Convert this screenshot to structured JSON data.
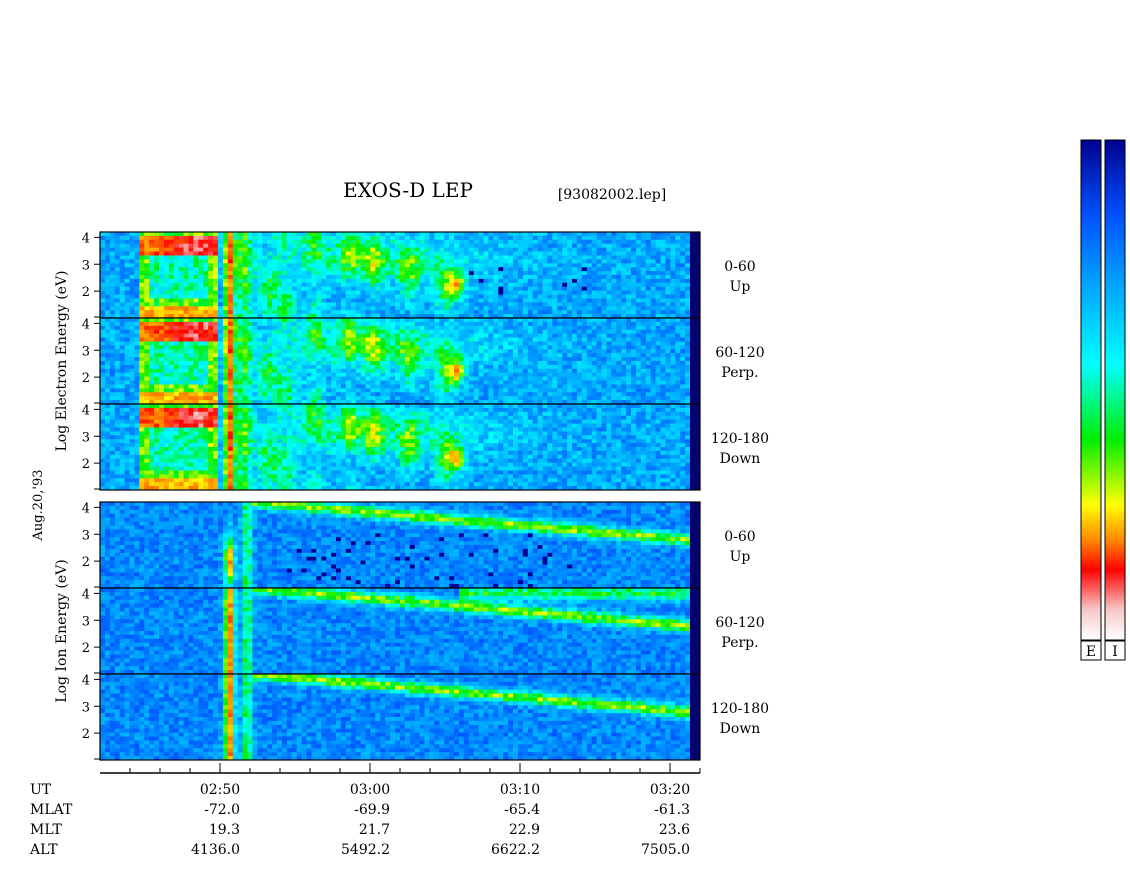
{
  "chart_data": {
    "type": "heatmap",
    "title": "EXOS-D LEP",
    "file_label": "[93082002.lep]",
    "date_label": "Aug.20,'93",
    "x_ticks": [
      "02:50",
      "03:00",
      "03:10",
      "03:20"
    ],
    "x_range_minutes": [
      42,
      82
    ],
    "y_ticks": [
      "4",
      "3",
      "2"
    ],
    "y_range": [
      1.0,
      4.2
    ],
    "groups": [
      {
        "id": "electron",
        "ylabel": [
          "Log",
          "Electron",
          "Energy",
          "(eV)"
        ],
        "panels": [
          {
            "angle": "0-60",
            "dir": "Up"
          },
          {
            "angle": "60-120",
            "dir": "Perp."
          },
          {
            "angle": "120-180",
            "dir": "Down"
          }
        ]
      },
      {
        "id": "ion",
        "ylabel": [
          "Log",
          "Ion",
          "Energy",
          "(eV)"
        ],
        "panels": [
          {
            "angle": "0-60",
            "dir": "Up"
          },
          {
            "angle": "60-120",
            "dir": "Perp."
          },
          {
            "angle": "120-180",
            "dir": "Down"
          }
        ]
      }
    ],
    "orbit_table": {
      "labels": [
        "UT",
        "MLAT",
        "MLT",
        "ALT"
      ],
      "columns": [
        {
          "UT": "02:50",
          "MLAT": "-72.0",
          "MLT": "19.3",
          "ALT": "4136.0"
        },
        {
          "UT": "03:00",
          "MLAT": "-69.9",
          "MLT": "21.7",
          "ALT": "5492.2"
        },
        {
          "UT": "03:10",
          "MLAT": "-65.4",
          "MLT": "22.9",
          "ALT": "6622.2"
        },
        {
          "UT": "03:20",
          "MLAT": "-61.3",
          "MLT": "23.6",
          "ALT": "7505.0"
        }
      ]
    },
    "colorbars": [
      {
        "label": "E"
      },
      {
        "label": "I"
      }
    ],
    "colormap": [
      "#ffffff",
      "#f6c8c8",
      "#ff0000",
      "#ff8800",
      "#ffff00",
      "#00ee00",
      "#00ffff",
      "#00aaff",
      "#0050ff",
      "#000090"
    ]
  }
}
